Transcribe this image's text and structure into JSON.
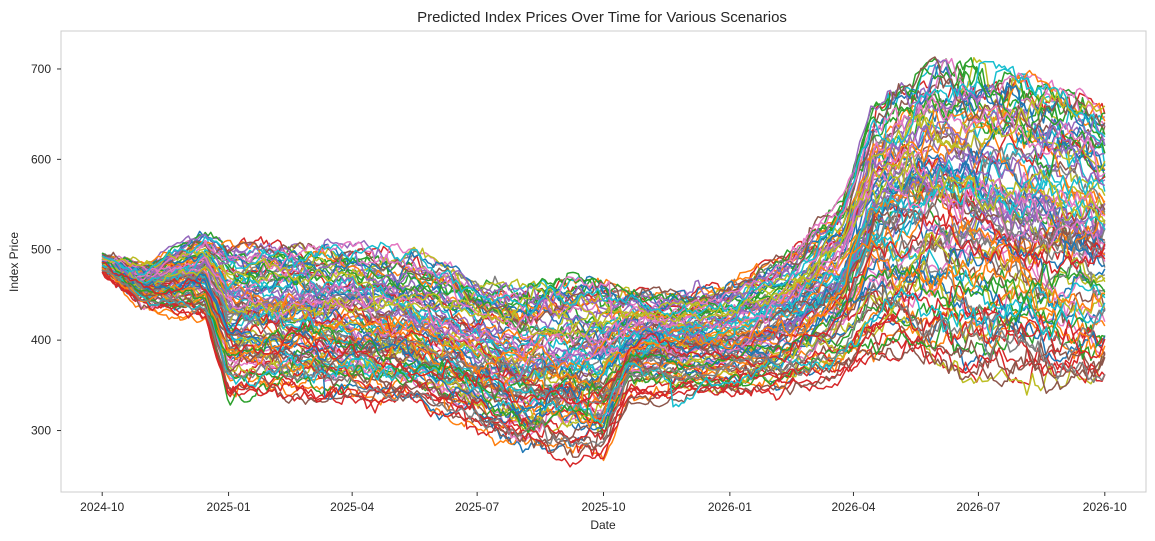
{
  "chart_data": {
    "type": "line",
    "title": "Predicted Index Prices Over Time for Various Scenarios",
    "xlabel": "Date",
    "ylabel": "Index Price",
    "x_start": "2024-10-01",
    "x_end": "2026-10-01",
    "xlim": [
      "2024-09-01",
      "2026-10-31"
    ],
    "ylim": [
      232,
      742
    ],
    "x_ticks": [
      "2024-10",
      "2025-01",
      "2025-04",
      "2025-07",
      "2025-10",
      "2026-01",
      "2026-04",
      "2026-07",
      "2026-10"
    ],
    "y_ticks": [
      300,
      400,
      500,
      600,
      700
    ],
    "grid": false,
    "legend": "none",
    "series_count": 100,
    "series_colors": [
      "#1f77b4",
      "#ff7f0e",
      "#2ca02c",
      "#d62728",
      "#9467bd",
      "#8c564b",
      "#e377c2",
      "#7f7f7f",
      "#bcbd22",
      "#17becf"
    ],
    "envelope": {
      "x": [
        "2024-10-01",
        "2024-11-01",
        "2024-12-15",
        "2025-01-01",
        "2025-02-01",
        "2025-04-01",
        "2025-05-15",
        "2025-07-01",
        "2025-08-01",
        "2025-09-10",
        "2025-10-01",
        "2025-10-20",
        "2025-11-15",
        "2026-01-01",
        "2026-02-15",
        "2026-03-25",
        "2026-04-15",
        "2026-06-01",
        "2026-07-01",
        "2026-08-01",
        "2026-09-01",
        "2026-10-01"
      ],
      "low": [
        475,
        440,
        425,
        340,
        340,
        330,
        325,
        300,
        280,
        270,
        265,
        330,
        335,
        340,
        340,
        360,
        380,
        370,
        350,
        345,
        350,
        355
      ],
      "high": [
        495,
        480,
        518,
        505,
        510,
        505,
        500,
        470,
        460,
        470,
        470,
        460,
        455,
        460,
        500,
        560,
        660,
        710,
        705,
        695,
        680,
        660
      ]
    }
  }
}
